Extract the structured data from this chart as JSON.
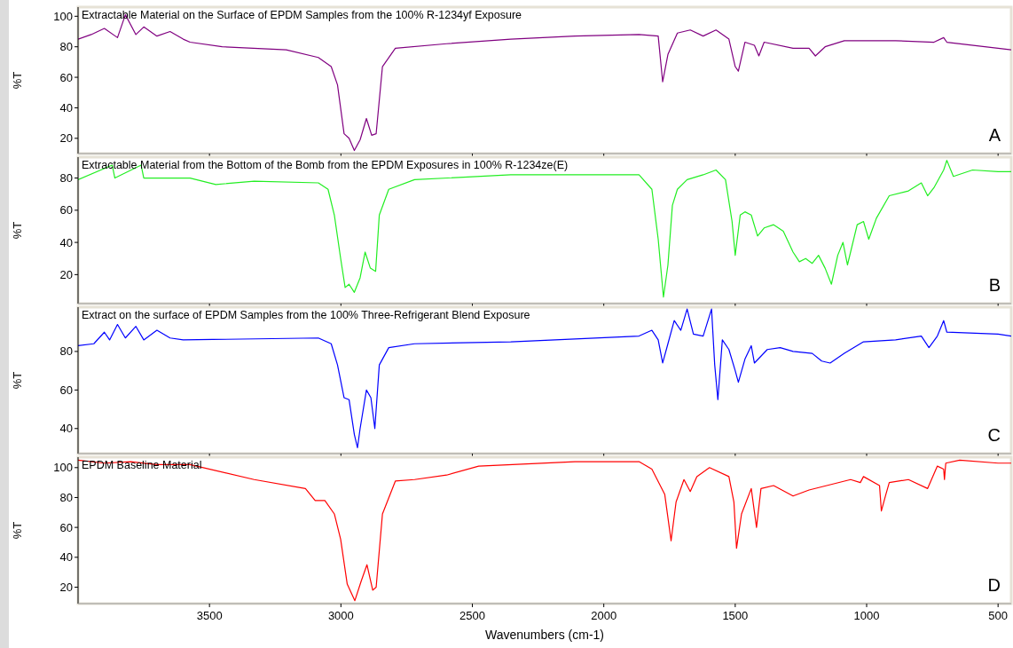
{
  "chart_data": [
    {
      "type": "line",
      "title": "Extractable Material on the Surface of EPDM Samples from the 100% R-1234yf Exposure",
      "ylabel": "%T",
      "annotations": [
        "A"
      ],
      "xlim": [
        4000,
        450
      ],
      "xticks": [
        3500,
        3000,
        2500,
        2000,
        1500,
        1000,
        500
      ],
      "ylim": [
        10,
        106
      ],
      "yticks": [
        20,
        40,
        60,
        80,
        100
      ],
      "tick_labels": "y",
      "series": [
        {
          "color": "#800080",
          "x": [
            4000,
            3950,
            3900,
            3850,
            3820,
            3780,
            3750,
            3700,
            3650,
            3600,
            3574,
            3452,
            3208,
            3086,
            3037,
            3013,
            2988,
            2969,
            2949,
            2927,
            2903,
            2883,
            2866,
            2842,
            2793,
            2598,
            2354,
            2110,
            1866,
            1793,
            1776,
            1756,
            1720,
            1671,
            1622,
            1573,
            1524,
            1500,
            1488,
            1463,
            1427,
            1410,
            1390,
            1280,
            1219,
            1195,
            1158,
            1085,
            890,
            744,
            707,
            695,
            500,
            450
          ],
          "values": [
            85,
            88,
            92,
            86,
            101,
            88,
            93,
            87,
            90,
            85,
            83,
            80,
            78,
            73,
            67,
            55,
            23,
            20,
            12,
            19,
            33,
            22,
            23,
            67,
            79,
            82,
            85,
            87,
            88,
            87,
            57,
            75,
            89,
            91,
            87,
            91,
            85,
            67,
            64,
            83,
            81,
            74,
            83,
            79,
            79,
            74,
            80,
            84,
            84,
            83,
            86,
            83,
            79,
            78
          ]
        }
      ]
    },
    {
      "type": "line",
      "title": "Extractable Material from the Bottom of the Bomb from the EPDM Exposures in 100% R-1234ze(E)",
      "ylabel": "%T",
      "annotations": [
        "B"
      ],
      "xlim": [
        4000,
        450
      ],
      "xticks": [
        3500,
        3000,
        2500,
        2000,
        1500,
        1000,
        500
      ],
      "ylim": [
        2,
        93
      ],
      "yticks": [
        20,
        40,
        60,
        80
      ],
      "tick_labels": "y",
      "series": [
        {
          "color": "#22ee22",
          "x": [
            4000,
            3870,
            3860,
            3760,
            3750,
            3574,
            3476,
            3330,
            3086,
            3049,
            3025,
            3001,
            2984,
            2969,
            2949,
            2927,
            2908,
            2888,
            2868,
            2854,
            2818,
            2720,
            2354,
            1866,
            1817,
            1793,
            1773,
            1756,
            1739,
            1720,
            1683,
            1622,
            1573,
            1537,
            1512,
            1500,
            1481,
            1463,
            1439,
            1415,
            1390,
            1354,
            1317,
            1280,
            1256,
            1232,
            1207,
            1183,
            1158,
            1134,
            1110,
            1090,
            1073,
            1036,
            1012,
            992,
            963,
            914,
            841,
            792,
            768,
            744,
            707,
            695,
            670,
            597,
            500,
            450
          ],
          "values": [
            79,
            88,
            80,
            88,
            80,
            80,
            76,
            78,
            77,
            73,
            57,
            30,
            12,
            14,
            9,
            18,
            34,
            24,
            22,
            57,
            73,
            79,
            82,
            82,
            73,
            42,
            6,
            26,
            63,
            73,
            79,
            82,
            85,
            79,
            53,
            32,
            57,
            59,
            57,
            44,
            49,
            51,
            47,
            34,
            28,
            30,
            27,
            32,
            24,
            14,
            32,
            40,
            26,
            51,
            53,
            42,
            55,
            69,
            72,
            77,
            69,
            74,
            85,
            91,
            81,
            85,
            84,
            84
          ]
        }
      ]
    },
    {
      "type": "line",
      "title": "Extract on the surface of EPDM Samples from the 100% Three-Refrigerant Blend Exposure",
      "ylabel": "%T",
      "annotations": [
        "C"
      ],
      "xlim": [
        4000,
        450
      ],
      "xticks": [
        3500,
        3000,
        2500,
        2000,
        1500,
        1000,
        500
      ],
      "ylim": [
        27,
        103
      ],
      "yticks": [
        40,
        60,
        80
      ],
      "tick_labels": "y",
      "series": [
        {
          "color": "#0000ff",
          "x": [
            4000,
            3940,
            3900,
            3880,
            3850,
            3820,
            3780,
            3750,
            3700,
            3650,
            3600,
            3086,
            3037,
            3013,
            2988,
            2969,
            2949,
            2937,
            2927,
            2903,
            2886,
            2871,
            2854,
            2818,
            2720,
            2354,
            1866,
            1817,
            1793,
            1776,
            1756,
            1732,
            1707,
            1683,
            1659,
            1622,
            1590,
            1578,
            1566,
            1549,
            1524,
            1500,
            1488,
            1463,
            1439,
            1427,
            1378,
            1329,
            1280,
            1207,
            1171,
            1139,
            1085,
            1012,
            890,
            792,
            763,
            731,
            707,
            695,
            500,
            450
          ],
          "values": [
            83,
            84,
            90,
            86,
            94,
            87,
            93,
            86,
            91,
            87,
            86,
            87,
            84,
            73,
            56,
            55,
            37,
            30,
            40,
            60,
            56,
            40,
            73,
            82,
            84,
            85,
            88,
            91,
            86,
            74,
            84,
            96,
            91,
            102,
            89,
            88,
            102,
            73,
            55,
            86,
            81,
            70,
            64,
            76,
            83,
            74,
            81,
            82,
            80,
            79,
            75,
            74,
            79,
            85,
            86,
            88,
            82,
            88,
            96,
            90,
            89,
            88
          ]
        }
      ]
    },
    {
      "type": "line",
      "title": "EPDM Baseline Material",
      "xlabel": "Wavenumbers (cm-1)",
      "ylabel": "%T",
      "annotations": [
        "D"
      ],
      "xlim": [
        4000,
        450
      ],
      "xticks": [
        3500,
        3000,
        2500,
        2000,
        1500,
        1000,
        500
      ],
      "ylim": [
        9,
        107
      ],
      "yticks": [
        20,
        40,
        60,
        80,
        100
      ],
      "series": [
        {
          "color": "#ff0000",
          "x": [
            4000,
            3900,
            3800,
            3700,
            3574,
            3330,
            3135,
            3098,
            3061,
            3025,
            3001,
            2976,
            2947,
            2923,
            2901,
            2879,
            2866,
            2842,
            2793,
            2720,
            2598,
            2476,
            2110,
            1866,
            1817,
            1768,
            1744,
            1725,
            1695,
            1671,
            1646,
            1598,
            1524,
            1505,
            1495,
            1476,
            1439,
            1419,
            1402,
            1354,
            1280,
            1219,
            1061,
            1024,
            1012,
            951,
            944,
            927,
            914,
            841,
            768,
            731,
            707,
            704,
            699,
            646,
            500,
            450
          ],
          "values": [
            105,
            103,
            104,
            102,
            102,
            92,
            86,
            78,
            78,
            69,
            52,
            22,
            11,
            24,
            35,
            18,
            20,
            69,
            91,
            92,
            95,
            101,
            104,
            104,
            99,
            82,
            51,
            77,
            92,
            84,
            94,
            100,
            94,
            77,
            46,
            69,
            86,
            60,
            86,
            88,
            81,
            85,
            92,
            90,
            94,
            88,
            71,
            82,
            90,
            92,
            86,
            101,
            99,
            92,
            103,
            105,
            103,
            103
          ]
        }
      ]
    }
  ]
}
